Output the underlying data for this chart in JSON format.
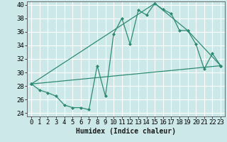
{
  "title": "",
  "xlabel": "Humidex (Indice chaleur)",
  "bg_color": "#cce8e8",
  "grid_color": "#ffffff",
  "line_color": "#2e8b72",
  "xlim": [
    -0.5,
    23.5
  ],
  "ylim": [
    23.5,
    40.5
  ],
  "yticks": [
    24,
    26,
    28,
    30,
    32,
    34,
    36,
    38,
    40
  ],
  "xticks": [
    0,
    1,
    2,
    3,
    4,
    5,
    6,
    7,
    8,
    9,
    10,
    11,
    12,
    13,
    14,
    15,
    16,
    17,
    18,
    19,
    20,
    21,
    22,
    23
  ],
  "series1_x": [
    0,
    1,
    2,
    3,
    4,
    5,
    6,
    7,
    8,
    9,
    10,
    11,
    12,
    13,
    14,
    15,
    16,
    17,
    18,
    19,
    20,
    21,
    22,
    23
  ],
  "series1_y": [
    28.3,
    27.4,
    27.0,
    26.5,
    25.2,
    24.8,
    24.8,
    24.5,
    31.0,
    26.5,
    35.7,
    38.0,
    34.2,
    39.2,
    38.5,
    40.2,
    39.3,
    38.7,
    36.2,
    36.2,
    34.2,
    30.5,
    32.8,
    31.0
  ],
  "series2_x": [
    0,
    23
  ],
  "series2_y": [
    28.3,
    31.0
  ],
  "series3_x": [
    0,
    15,
    19,
    23
  ],
  "series3_y": [
    28.3,
    40.2,
    36.2,
    31.0
  ],
  "marker_size": 2.0,
  "line_width": 0.9,
  "tick_fontsize": 6.5,
  "xlabel_fontsize": 7.0
}
